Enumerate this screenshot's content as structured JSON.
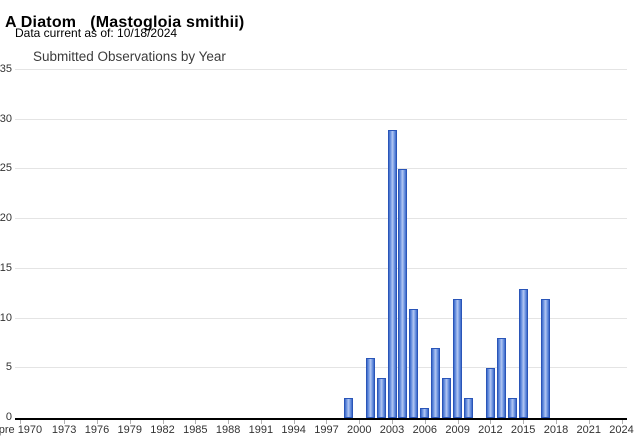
{
  "header": {
    "title_common": "A Diatom",
    "title_scientific": "(Mastogloia smithii)",
    "data_current_note": "Data current as of: 10/18/2024"
  },
  "chart_data": {
    "type": "bar",
    "title": "Submitted Observations by Year",
    "xlabel": "",
    "ylabel": "",
    "ylim": [
      0,
      35
    ],
    "y_ticks": [
      0,
      5,
      10,
      15,
      20,
      25,
      30,
      35
    ],
    "grid": "horizontal",
    "legend": "none",
    "x_slot_count": 56,
    "x_range_note": "one slot per year, pre-1970 bucket then 1970-2024",
    "x_tick_labels": [
      {
        "label": "pre 1970",
        "slot": 0
      },
      {
        "label": "1973",
        "slot": 4
      },
      {
        "label": "1976",
        "slot": 7
      },
      {
        "label": "1979",
        "slot": 10
      },
      {
        "label": "1982",
        "slot": 13
      },
      {
        "label": "1985",
        "slot": 16
      },
      {
        "label": "1988",
        "slot": 19
      },
      {
        "label": "1991",
        "slot": 22
      },
      {
        "label": "1994",
        "slot": 25
      },
      {
        "label": "1997",
        "slot": 28
      },
      {
        "label": "2000",
        "slot": 31
      },
      {
        "label": "2003",
        "slot": 34
      },
      {
        "label": "2006",
        "slot": 37
      },
      {
        "label": "2009",
        "slot": 40
      },
      {
        "label": "2012",
        "slot": 43
      },
      {
        "label": "2015",
        "slot": 46
      },
      {
        "label": "2018",
        "slot": 49
      },
      {
        "label": "2021",
        "slot": 52
      },
      {
        "label": "2024",
        "slot": 55
      }
    ],
    "points": [
      {
        "year": "1999",
        "slot": 30,
        "value": 2
      },
      {
        "year": "2001",
        "slot": 32,
        "value": 6
      },
      {
        "year": "2002",
        "slot": 33,
        "value": 4
      },
      {
        "year": "2003",
        "slot": 34,
        "value": 29
      },
      {
        "year": "2004",
        "slot": 35,
        "value": 25
      },
      {
        "year": "2005",
        "slot": 36,
        "value": 11
      },
      {
        "year": "2006",
        "slot": 37,
        "value": 1
      },
      {
        "year": "2007",
        "slot": 38,
        "value": 7
      },
      {
        "year": "2008",
        "slot": 39,
        "value": 4
      },
      {
        "year": "2009",
        "slot": 40,
        "value": 12
      },
      {
        "year": "2010",
        "slot": 41,
        "value": 2
      },
      {
        "year": "2012",
        "slot": 43,
        "value": 5
      },
      {
        "year": "2013",
        "slot": 44,
        "value": 8
      },
      {
        "year": "2014",
        "slot": 45,
        "value": 2
      },
      {
        "year": "2015",
        "slot": 46,
        "value": 13
      },
      {
        "year": "2017",
        "slot": 48,
        "value": 12
      }
    ],
    "colors": {
      "bar_fill_edge": "#3c6ac9",
      "bar_fill_mid": "#6b92e0",
      "bar_fill_center": "#b3c8f3",
      "bar_border": "#2a55b8",
      "gridline": "#e4e4e4",
      "axis_line": "#000000",
      "tick_label": "#333333",
      "chart_title": "#3c3c3c"
    }
  }
}
